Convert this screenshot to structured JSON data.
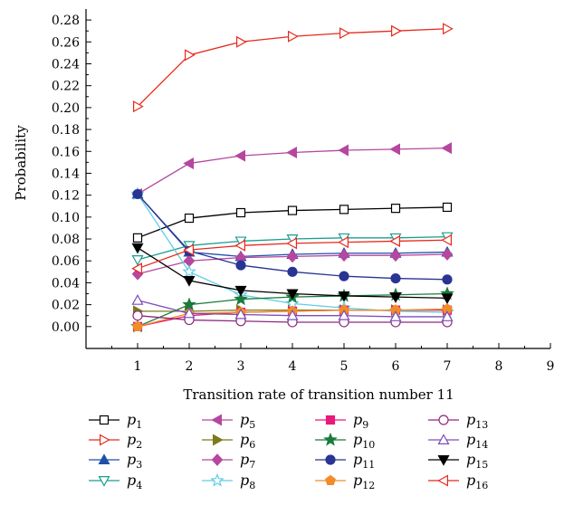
{
  "chart_data": {
    "type": "line",
    "title": "",
    "xlabel": "Transition rate of transition number 11",
    "ylabel": "Probability",
    "xlim": [
      0,
      9
    ],
    "ylim": [
      -0.02,
      0.29
    ],
    "xticks": [
      1,
      2,
      3,
      4,
      5,
      6,
      7,
      8,
      9
    ],
    "yticks": [
      0.0,
      0.02,
      0.04,
      0.06,
      0.08,
      0.1,
      0.12,
      0.14,
      0.16,
      0.18,
      0.2,
      0.22,
      0.24,
      0.26,
      0.28
    ],
    "ytick_labels": [
      "0.00",
      "0.02",
      "0.04",
      "0.06",
      "0.08",
      "0.10",
      "0.12",
      "0.14",
      "0.16",
      "0.18",
      "0.20",
      "0.22",
      "0.24",
      "0.26",
      "0.28"
    ],
    "grid": false,
    "legend_position": "bottom",
    "x": [
      1,
      2,
      3,
      4,
      5,
      6,
      7
    ],
    "series": [
      {
        "name": "p",
        "sub": "1",
        "color": "#000000",
        "marker": "square-open",
        "values": [
          0.081,
          0.099,
          0.104,
          0.106,
          0.107,
          0.108,
          0.109
        ]
      },
      {
        "name": "p",
        "sub": "2",
        "color": "#e8291c",
        "marker": "triangle-right-open",
        "values": [
          0.201,
          0.248,
          0.26,
          0.265,
          0.268,
          0.27,
          0.272
        ]
      },
      {
        "name": "p",
        "sub": "3",
        "color": "#1f4fa8",
        "marker": "triangle-up-filled",
        "values": [
          0.121,
          0.068,
          0.064,
          0.066,
          0.067,
          0.067,
          0.068
        ]
      },
      {
        "name": "p",
        "sub": "4",
        "color": "#1a9e8f",
        "marker": "triangle-down-open",
        "values": [
          0.061,
          0.074,
          0.078,
          0.08,
          0.081,
          0.081,
          0.082
        ]
      },
      {
        "name": "p",
        "sub": "5",
        "color": "#b5479f",
        "marker": "triangle-left-filled",
        "values": [
          0.121,
          0.149,
          0.156,
          0.159,
          0.161,
          0.162,
          0.163
        ]
      },
      {
        "name": "p",
        "sub": "6",
        "color": "#7b7b1e",
        "marker": "triangle-right-filled",
        "values": [
          0.014,
          0.014,
          0.015,
          0.015,
          0.015,
          0.015,
          0.015
        ]
      },
      {
        "name": "p",
        "sub": "7",
        "color": "#b5479f",
        "marker": "diamond-filled",
        "values": [
          0.048,
          0.06,
          0.063,
          0.064,
          0.065,
          0.065,
          0.066
        ]
      },
      {
        "name": "p",
        "sub": "8",
        "color": "#5fcde4",
        "marker": "star-open",
        "values": [
          0.121,
          0.05,
          0.029,
          0.021,
          0.017,
          0.014,
          0.013
        ]
      },
      {
        "name": "p",
        "sub": "9",
        "color": "#e8197a",
        "marker": "square-filled",
        "values": [
          0.0,
          0.01,
          0.013,
          0.014,
          0.015,
          0.015,
          0.015
        ]
      },
      {
        "name": "p",
        "sub": "10",
        "color": "#1a7a3a",
        "marker": "star-filled",
        "values": [
          0.0,
          0.02,
          0.025,
          0.027,
          0.028,
          0.029,
          0.03
        ]
      },
      {
        "name": "p",
        "sub": "11",
        "color": "#283593",
        "marker": "circle-filled",
        "values": [
          0.121,
          0.069,
          0.056,
          0.05,
          0.046,
          0.044,
          0.043
        ]
      },
      {
        "name": "p",
        "sub": "12",
        "color": "#f28c28",
        "marker": "pentagon-filled",
        "values": [
          0.0,
          0.012,
          0.013,
          0.014,
          0.015,
          0.015,
          0.016
        ]
      },
      {
        "name": "p",
        "sub": "13",
        "color": "#8e2a7e",
        "marker": "circle-open",
        "values": [
          0.01,
          0.006,
          0.005,
          0.004,
          0.004,
          0.004,
          0.004
        ]
      },
      {
        "name": "p",
        "sub": "14",
        "color": "#7c4dbb",
        "marker": "triangle-up-open",
        "values": [
          0.024,
          0.012,
          0.011,
          0.01,
          0.01,
          0.009,
          0.009
        ]
      },
      {
        "name": "p",
        "sub": "15",
        "color": "#000000",
        "marker": "triangle-down-filled",
        "values": [
          0.072,
          0.042,
          0.033,
          0.03,
          0.028,
          0.027,
          0.026
        ]
      },
      {
        "name": "p",
        "sub": "16",
        "color": "#e8291c",
        "marker": "triangle-left-open",
        "values": [
          0.053,
          0.07,
          0.074,
          0.076,
          0.077,
          0.078,
          0.079
        ]
      }
    ]
  }
}
